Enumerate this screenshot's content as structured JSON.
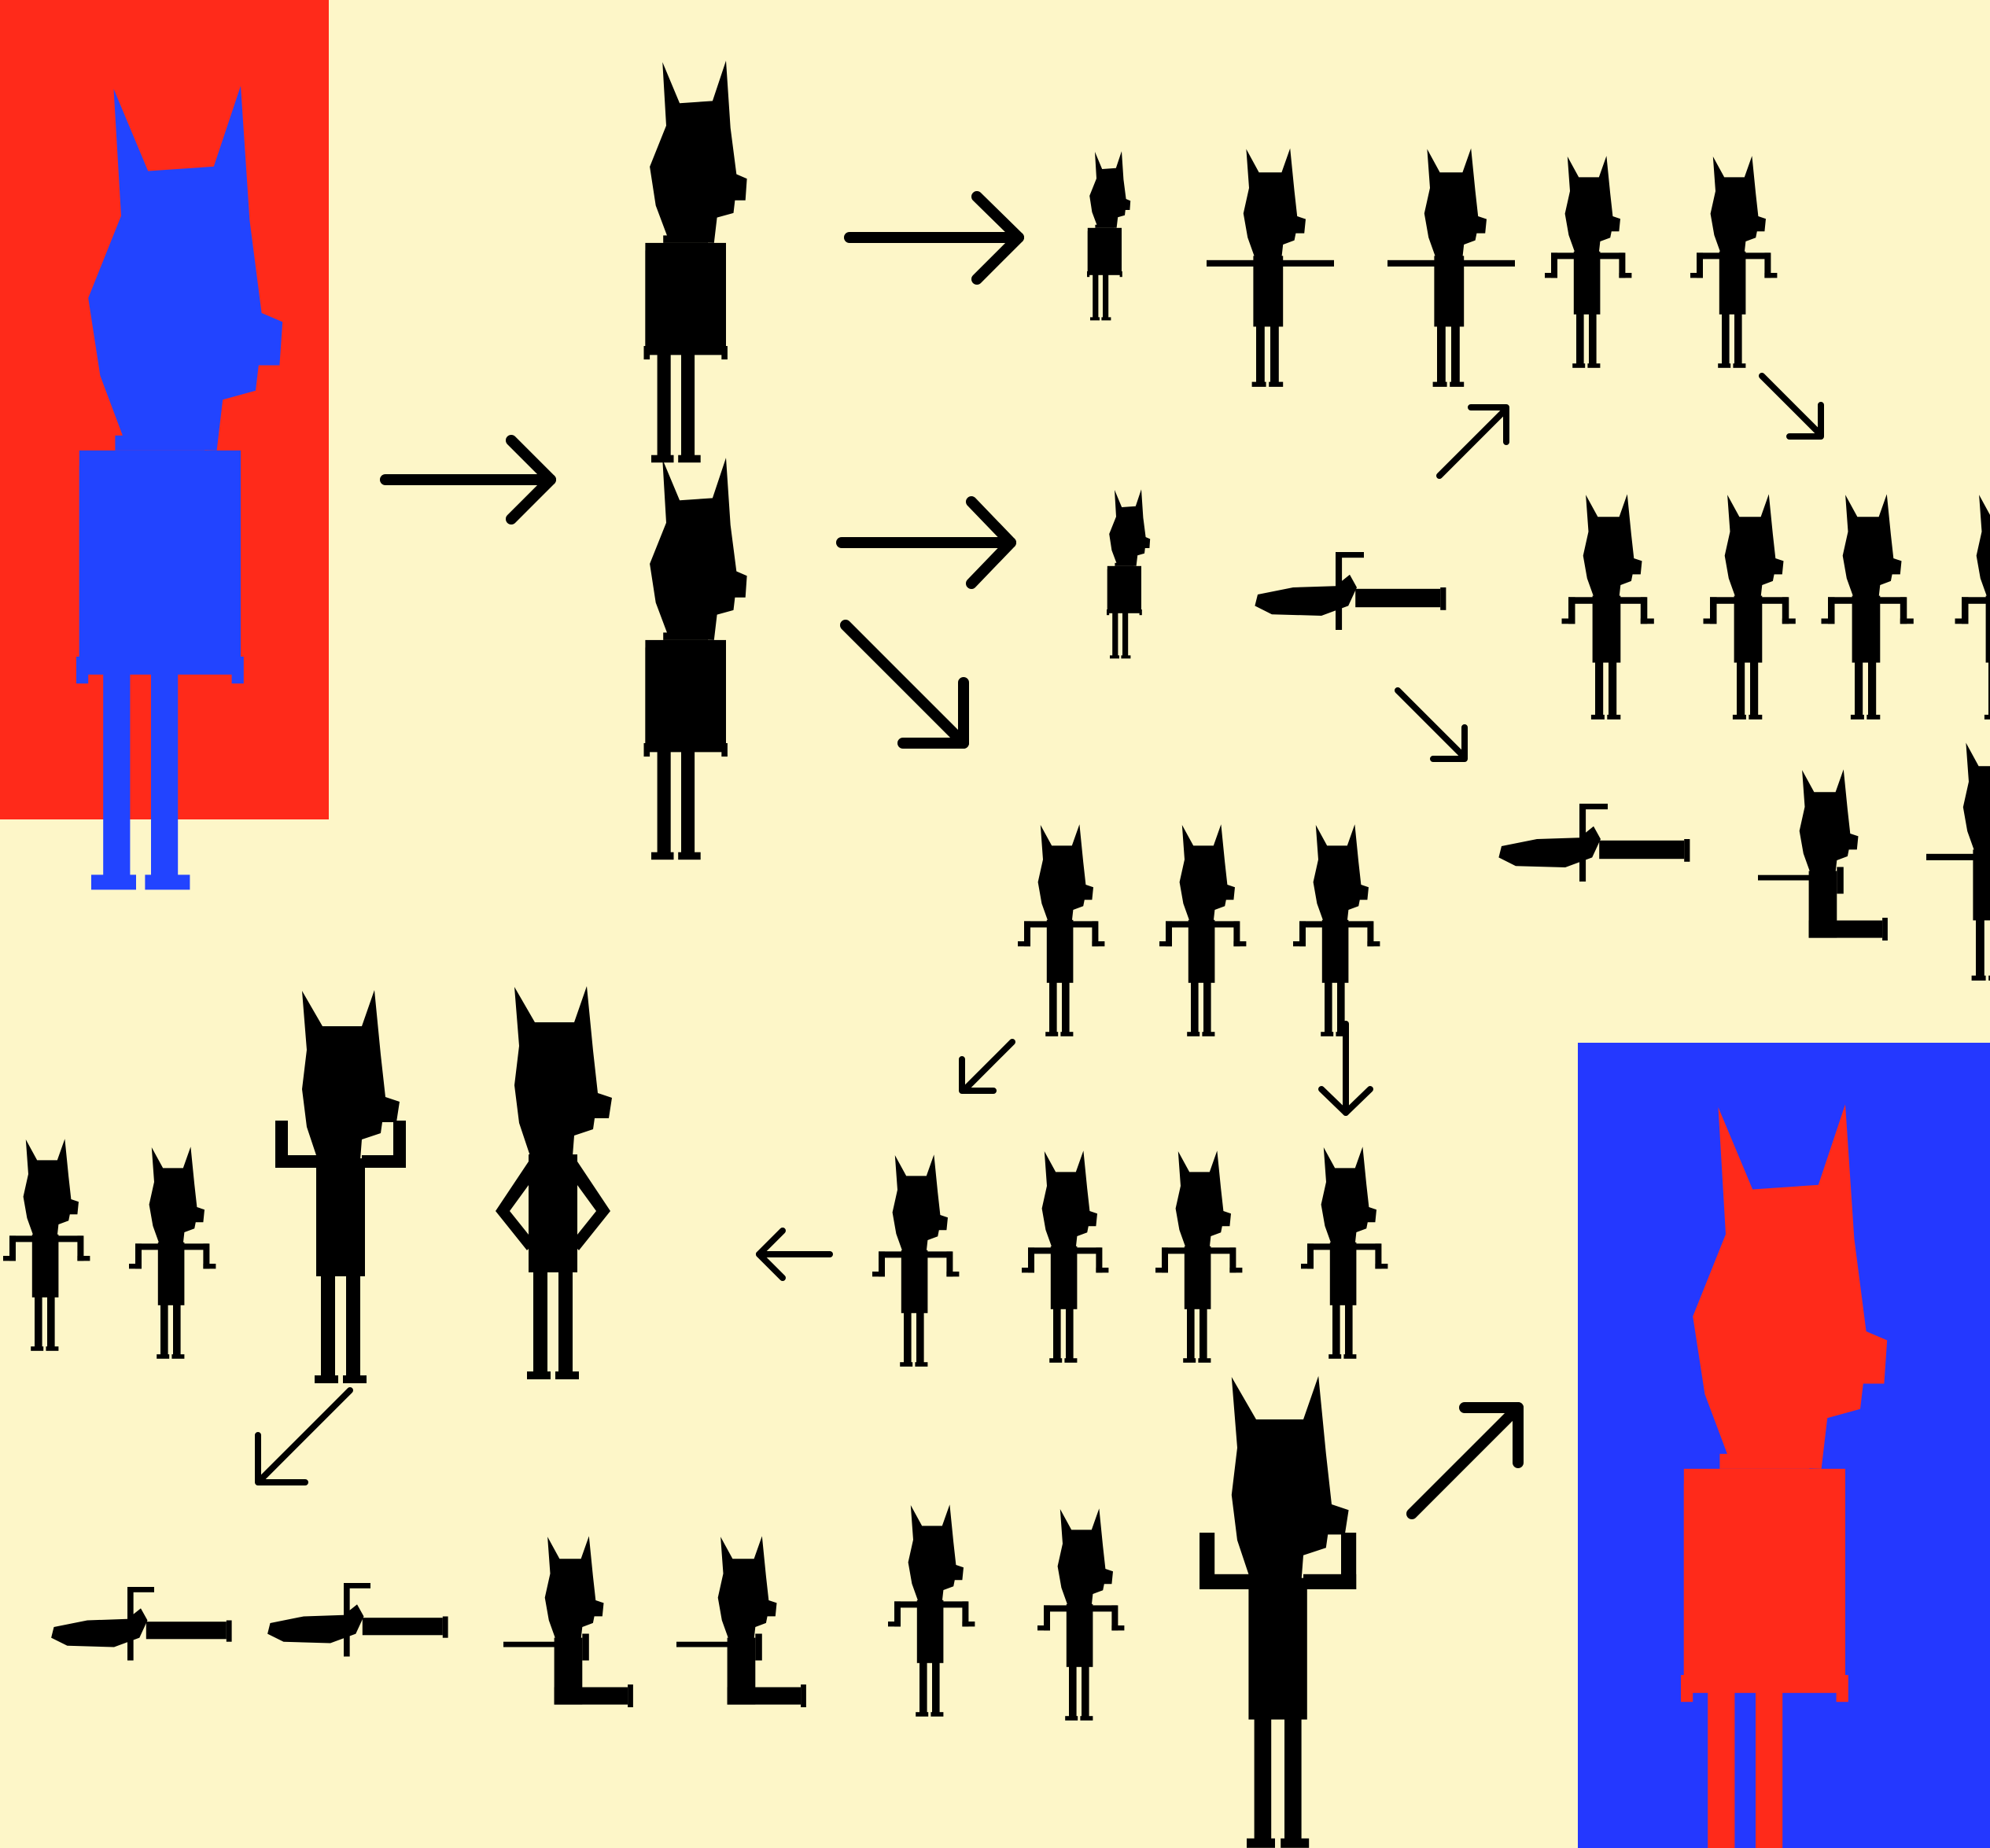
{
  "colors": {
    "background": "#FDF6C8",
    "ink": "#000000",
    "start_panel_bg": "#FF2A1A",
    "start_figure": "#2244FF",
    "end_panel_bg": "#2438FF",
    "end_figure": "#FF2A1A"
  },
  "figure_icon": "cat-eared-character-silhouette"
}
